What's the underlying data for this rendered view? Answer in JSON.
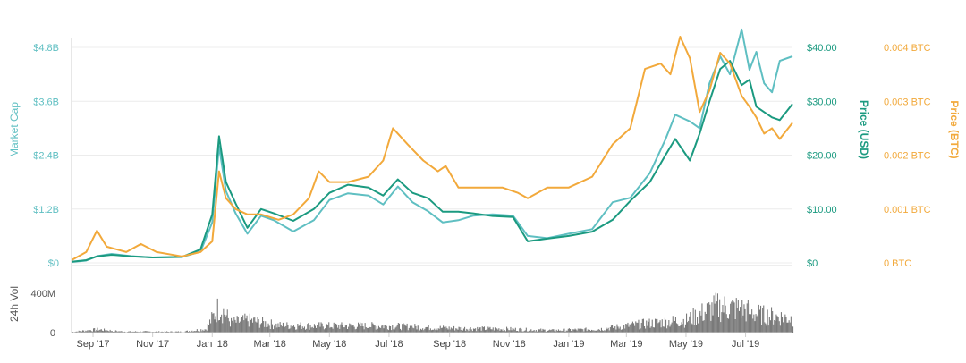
{
  "chart_data": {
    "type": "line",
    "axes": {
      "market_cap": {
        "label": "Market Cap",
        "ticks": [
          "$0",
          "$1.2B",
          "$2.4B",
          "$3.6B",
          "$4.8B"
        ],
        "tick_values": [
          0,
          1.2,
          2.4,
          3.6,
          4.8
        ],
        "unit": "B USD",
        "range": [
          0,
          4.8
        ],
        "color": "#5fbfc2"
      },
      "price_usd": {
        "label": "Price (USD)",
        "ticks": [
          "$0",
          "$10.00",
          "$20.00",
          "$30.00",
          "$40.00"
        ],
        "tick_values": [
          0,
          10,
          20,
          30,
          40
        ],
        "range": [
          0,
          40
        ],
        "color": "#1b9a80"
      },
      "price_btc": {
        "label": "Price (BTC)",
        "ticks": [
          "0 BTC",
          "0.001 BTC",
          "0.002 BTC",
          "0.003 BTC",
          "0.004 BTC"
        ],
        "tick_values": [
          0,
          0.001,
          0.002,
          0.003,
          0.004
        ],
        "range": [
          0,
          0.004
        ],
        "color": "#f2a93b"
      },
      "volume": {
        "label": "24h Vol",
        "ticks": [
          "0",
          "400M"
        ],
        "tick_values": [
          0,
          400
        ],
        "unit": "M USD",
        "range": [
          0,
          400
        ],
        "color": "#7a7a7a"
      }
    },
    "x": {
      "tick_labels": [
        "Sep '17",
        "Nov '17",
        "Jan '18",
        "Mar '18",
        "May '18",
        "Jul '18",
        "Sep '18",
        "Nov '18",
        "Jan '19",
        "Mar '19",
        "May '19",
        "Jul '19"
      ],
      "tick_dates": [
        "2017-09-01",
        "2017-11-01",
        "2018-01-01",
        "2018-03-01",
        "2018-05-01",
        "2018-07-01",
        "2018-09-01",
        "2018-11-01",
        "2019-01-01",
        "2019-03-01",
        "2019-05-01",
        "2019-07-01"
      ],
      "range": [
        "2017-08-10",
        "2019-08-18"
      ]
    },
    "series": [
      {
        "axis": "market_cap",
        "color": "#5fbfc2",
        "points": [
          [
            "2017-08-10",
            0.02
          ],
          [
            "2017-08-25",
            0.05
          ],
          [
            "2017-09-05",
            0.15
          ],
          [
            "2017-09-20",
            0.2
          ],
          [
            "2017-10-10",
            0.15
          ],
          [
            "2017-11-01",
            0.12
          ],
          [
            "2017-12-01",
            0.13
          ],
          [
            "2017-12-20",
            0.25
          ],
          [
            "2018-01-01",
            0.9
          ],
          [
            "2018-01-08",
            2.6
          ],
          [
            "2018-01-15",
            1.6
          ],
          [
            "2018-01-25",
            1.1
          ],
          [
            "2018-02-06",
            0.65
          ],
          [
            "2018-02-20",
            1.05
          ],
          [
            "2018-03-05",
            0.95
          ],
          [
            "2018-03-25",
            0.7
          ],
          [
            "2018-04-15",
            0.95
          ],
          [
            "2018-05-01",
            1.4
          ],
          [
            "2018-05-20",
            1.55
          ],
          [
            "2018-06-10",
            1.5
          ],
          [
            "2018-06-25",
            1.3
          ],
          [
            "2018-07-10",
            1.7
          ],
          [
            "2018-07-25",
            1.35
          ],
          [
            "2018-08-10",
            1.15
          ],
          [
            "2018-08-25",
            0.9
          ],
          [
            "2018-09-10",
            0.95
          ],
          [
            "2018-09-25",
            1.05
          ],
          [
            "2018-10-15",
            1.08
          ],
          [
            "2018-11-05",
            1.05
          ],
          [
            "2018-11-20",
            0.6
          ],
          [
            "2018-12-10",
            0.55
          ],
          [
            "2019-01-01",
            0.65
          ],
          [
            "2019-01-25",
            0.75
          ],
          [
            "2019-02-15",
            1.35
          ],
          [
            "2019-03-05",
            1.45
          ],
          [
            "2019-03-25",
            2.0
          ],
          [
            "2019-04-10",
            2.75
          ],
          [
            "2019-04-20",
            3.3
          ],
          [
            "2019-05-05",
            3.15
          ],
          [
            "2019-05-15",
            3.0
          ],
          [
            "2019-05-25",
            4.0
          ],
          [
            "2019-06-05",
            4.6
          ],
          [
            "2019-06-15",
            4.2
          ],
          [
            "2019-06-27",
            5.2
          ],
          [
            "2019-07-05",
            4.3
          ],
          [
            "2019-07-12",
            4.7
          ],
          [
            "2019-07-20",
            4.0
          ],
          [
            "2019-07-28",
            3.8
          ],
          [
            "2019-08-05",
            4.5
          ],
          [
            "2019-08-18",
            4.6
          ]
        ]
      },
      {
        "axis": "price_usd",
        "color": "#1b9a80",
        "points": [
          [
            "2017-08-10",
            0.2
          ],
          [
            "2017-08-25",
            0.5
          ],
          [
            "2017-09-05",
            1.2
          ],
          [
            "2017-09-20",
            1.5
          ],
          [
            "2017-10-10",
            1.2
          ],
          [
            "2017-11-01",
            1.0
          ],
          [
            "2017-12-01",
            1.1
          ],
          [
            "2017-12-20",
            2.5
          ],
          [
            "2018-01-01",
            9.0
          ],
          [
            "2018-01-08",
            23.5
          ],
          [
            "2018-01-15",
            15.0
          ],
          [
            "2018-01-25",
            11.0
          ],
          [
            "2018-02-06",
            6.5
          ],
          [
            "2018-02-20",
            10.0
          ],
          [
            "2018-03-05",
            9.2
          ],
          [
            "2018-03-25",
            7.8
          ],
          [
            "2018-04-15",
            10.0
          ],
          [
            "2018-05-01",
            13.0
          ],
          [
            "2018-05-20",
            14.5
          ],
          [
            "2018-06-10",
            14.0
          ],
          [
            "2018-06-25",
            12.5
          ],
          [
            "2018-07-10",
            15.5
          ],
          [
            "2018-07-25",
            13.0
          ],
          [
            "2018-08-10",
            12.0
          ],
          [
            "2018-08-25",
            9.5
          ],
          [
            "2018-09-10",
            9.5
          ],
          [
            "2018-09-25",
            9.2
          ],
          [
            "2018-10-15",
            8.7
          ],
          [
            "2018-11-05",
            8.5
          ],
          [
            "2018-11-20",
            4.0
          ],
          [
            "2018-12-10",
            4.5
          ],
          [
            "2019-01-01",
            5.0
          ],
          [
            "2019-01-25",
            5.8
          ],
          [
            "2019-02-15",
            8.0
          ],
          [
            "2019-03-05",
            11.5
          ],
          [
            "2019-03-25",
            15.0
          ],
          [
            "2019-04-10",
            20.0
          ],
          [
            "2019-04-20",
            23.0
          ],
          [
            "2019-05-05",
            19.0
          ],
          [
            "2019-05-15",
            24.0
          ],
          [
            "2019-05-25",
            30.0
          ],
          [
            "2019-06-05",
            36.0
          ],
          [
            "2019-06-15",
            37.5
          ],
          [
            "2019-06-27",
            33.0
          ],
          [
            "2019-07-05",
            34.0
          ],
          [
            "2019-07-12",
            29.0
          ],
          [
            "2019-07-20",
            28.0
          ],
          [
            "2019-07-28",
            27.0
          ],
          [
            "2019-08-05",
            26.5
          ],
          [
            "2019-08-18",
            29.5
          ]
        ]
      },
      {
        "axis": "price_btc",
        "color": "#f2a93b",
        "points": [
          [
            "2017-08-10",
            5e-05
          ],
          [
            "2017-08-25",
            0.0002
          ],
          [
            "2017-09-05",
            0.0006
          ],
          [
            "2017-09-15",
            0.0003
          ],
          [
            "2017-10-05",
            0.0002
          ],
          [
            "2017-10-20",
            0.00035
          ],
          [
            "2017-11-05",
            0.0002
          ],
          [
            "2017-12-01",
            0.00012
          ],
          [
            "2017-12-20",
            0.0002
          ],
          [
            "2018-01-01",
            0.0004
          ],
          [
            "2018-01-08",
            0.0017
          ],
          [
            "2018-01-15",
            0.0012
          ],
          [
            "2018-01-25",
            0.001
          ],
          [
            "2018-02-06",
            0.0009
          ],
          [
            "2018-02-20",
            0.0009
          ],
          [
            "2018-03-10",
            0.0008
          ],
          [
            "2018-03-25",
            0.0009
          ],
          [
            "2018-04-10",
            0.0012
          ],
          [
            "2018-04-20",
            0.0017
          ],
          [
            "2018-05-01",
            0.0015
          ],
          [
            "2018-05-20",
            0.0015
          ],
          [
            "2018-06-10",
            0.0016
          ],
          [
            "2018-06-25",
            0.0019
          ],
          [
            "2018-07-05",
            0.0025
          ],
          [
            "2018-07-20",
            0.0022
          ],
          [
            "2018-08-05",
            0.0019
          ],
          [
            "2018-08-20",
            0.0017
          ],
          [
            "2018-08-28",
            0.0018
          ],
          [
            "2018-09-10",
            0.0014
          ],
          [
            "2018-10-01",
            0.0014
          ],
          [
            "2018-10-25",
            0.0014
          ],
          [
            "2018-11-10",
            0.0013
          ],
          [
            "2018-11-20",
            0.0012
          ],
          [
            "2018-12-10",
            0.0014
          ],
          [
            "2019-01-01",
            0.0014
          ],
          [
            "2019-01-25",
            0.0016
          ],
          [
            "2019-02-15",
            0.0022
          ],
          [
            "2019-03-05",
            0.0025
          ],
          [
            "2019-03-20",
            0.0036
          ],
          [
            "2019-04-05",
            0.0037
          ],
          [
            "2019-04-15",
            0.0035
          ],
          [
            "2019-04-25",
            0.0042
          ],
          [
            "2019-05-05",
            0.0038
          ],
          [
            "2019-05-15",
            0.0028
          ],
          [
            "2019-05-25",
            0.0032
          ],
          [
            "2019-06-05",
            0.0039
          ],
          [
            "2019-06-15",
            0.0037
          ],
          [
            "2019-06-27",
            0.0031
          ],
          [
            "2019-07-05",
            0.0029
          ],
          [
            "2019-07-12",
            0.0027
          ],
          [
            "2019-07-20",
            0.0024
          ],
          [
            "2019-07-28",
            0.0025
          ],
          [
            "2019-08-05",
            0.0023
          ],
          [
            "2019-08-18",
            0.0026
          ]
        ]
      }
    ],
    "volume_profile": [
      [
        "2017-08-10",
        8
      ],
      [
        "2017-09-05",
        35
      ],
      [
        "2017-10-01",
        12
      ],
      [
        "2017-12-01",
        10
      ],
      [
        "2017-12-25",
        40
      ],
      [
        "2018-01-08",
        300
      ],
      [
        "2018-01-20",
        110
      ],
      [
        "2018-02-06",
        140
      ],
      [
        "2018-03-10",
        80
      ],
      [
        "2018-05-01",
        75
      ],
      [
        "2018-07-01",
        75
      ],
      [
        "2018-09-01",
        50
      ],
      [
        "2018-11-01",
        40
      ],
      [
        "2018-12-15",
        25
      ],
      [
        "2019-02-01",
        40
      ],
      [
        "2019-03-20",
        100
      ],
      [
        "2019-05-01",
        140
      ],
      [
        "2019-06-01",
        290
      ],
      [
        "2019-06-25",
        270
      ],
      [
        "2019-07-15",
        200
      ],
      [
        "2019-08-18",
        160
      ]
    ],
    "grid": true,
    "legend": "none"
  }
}
